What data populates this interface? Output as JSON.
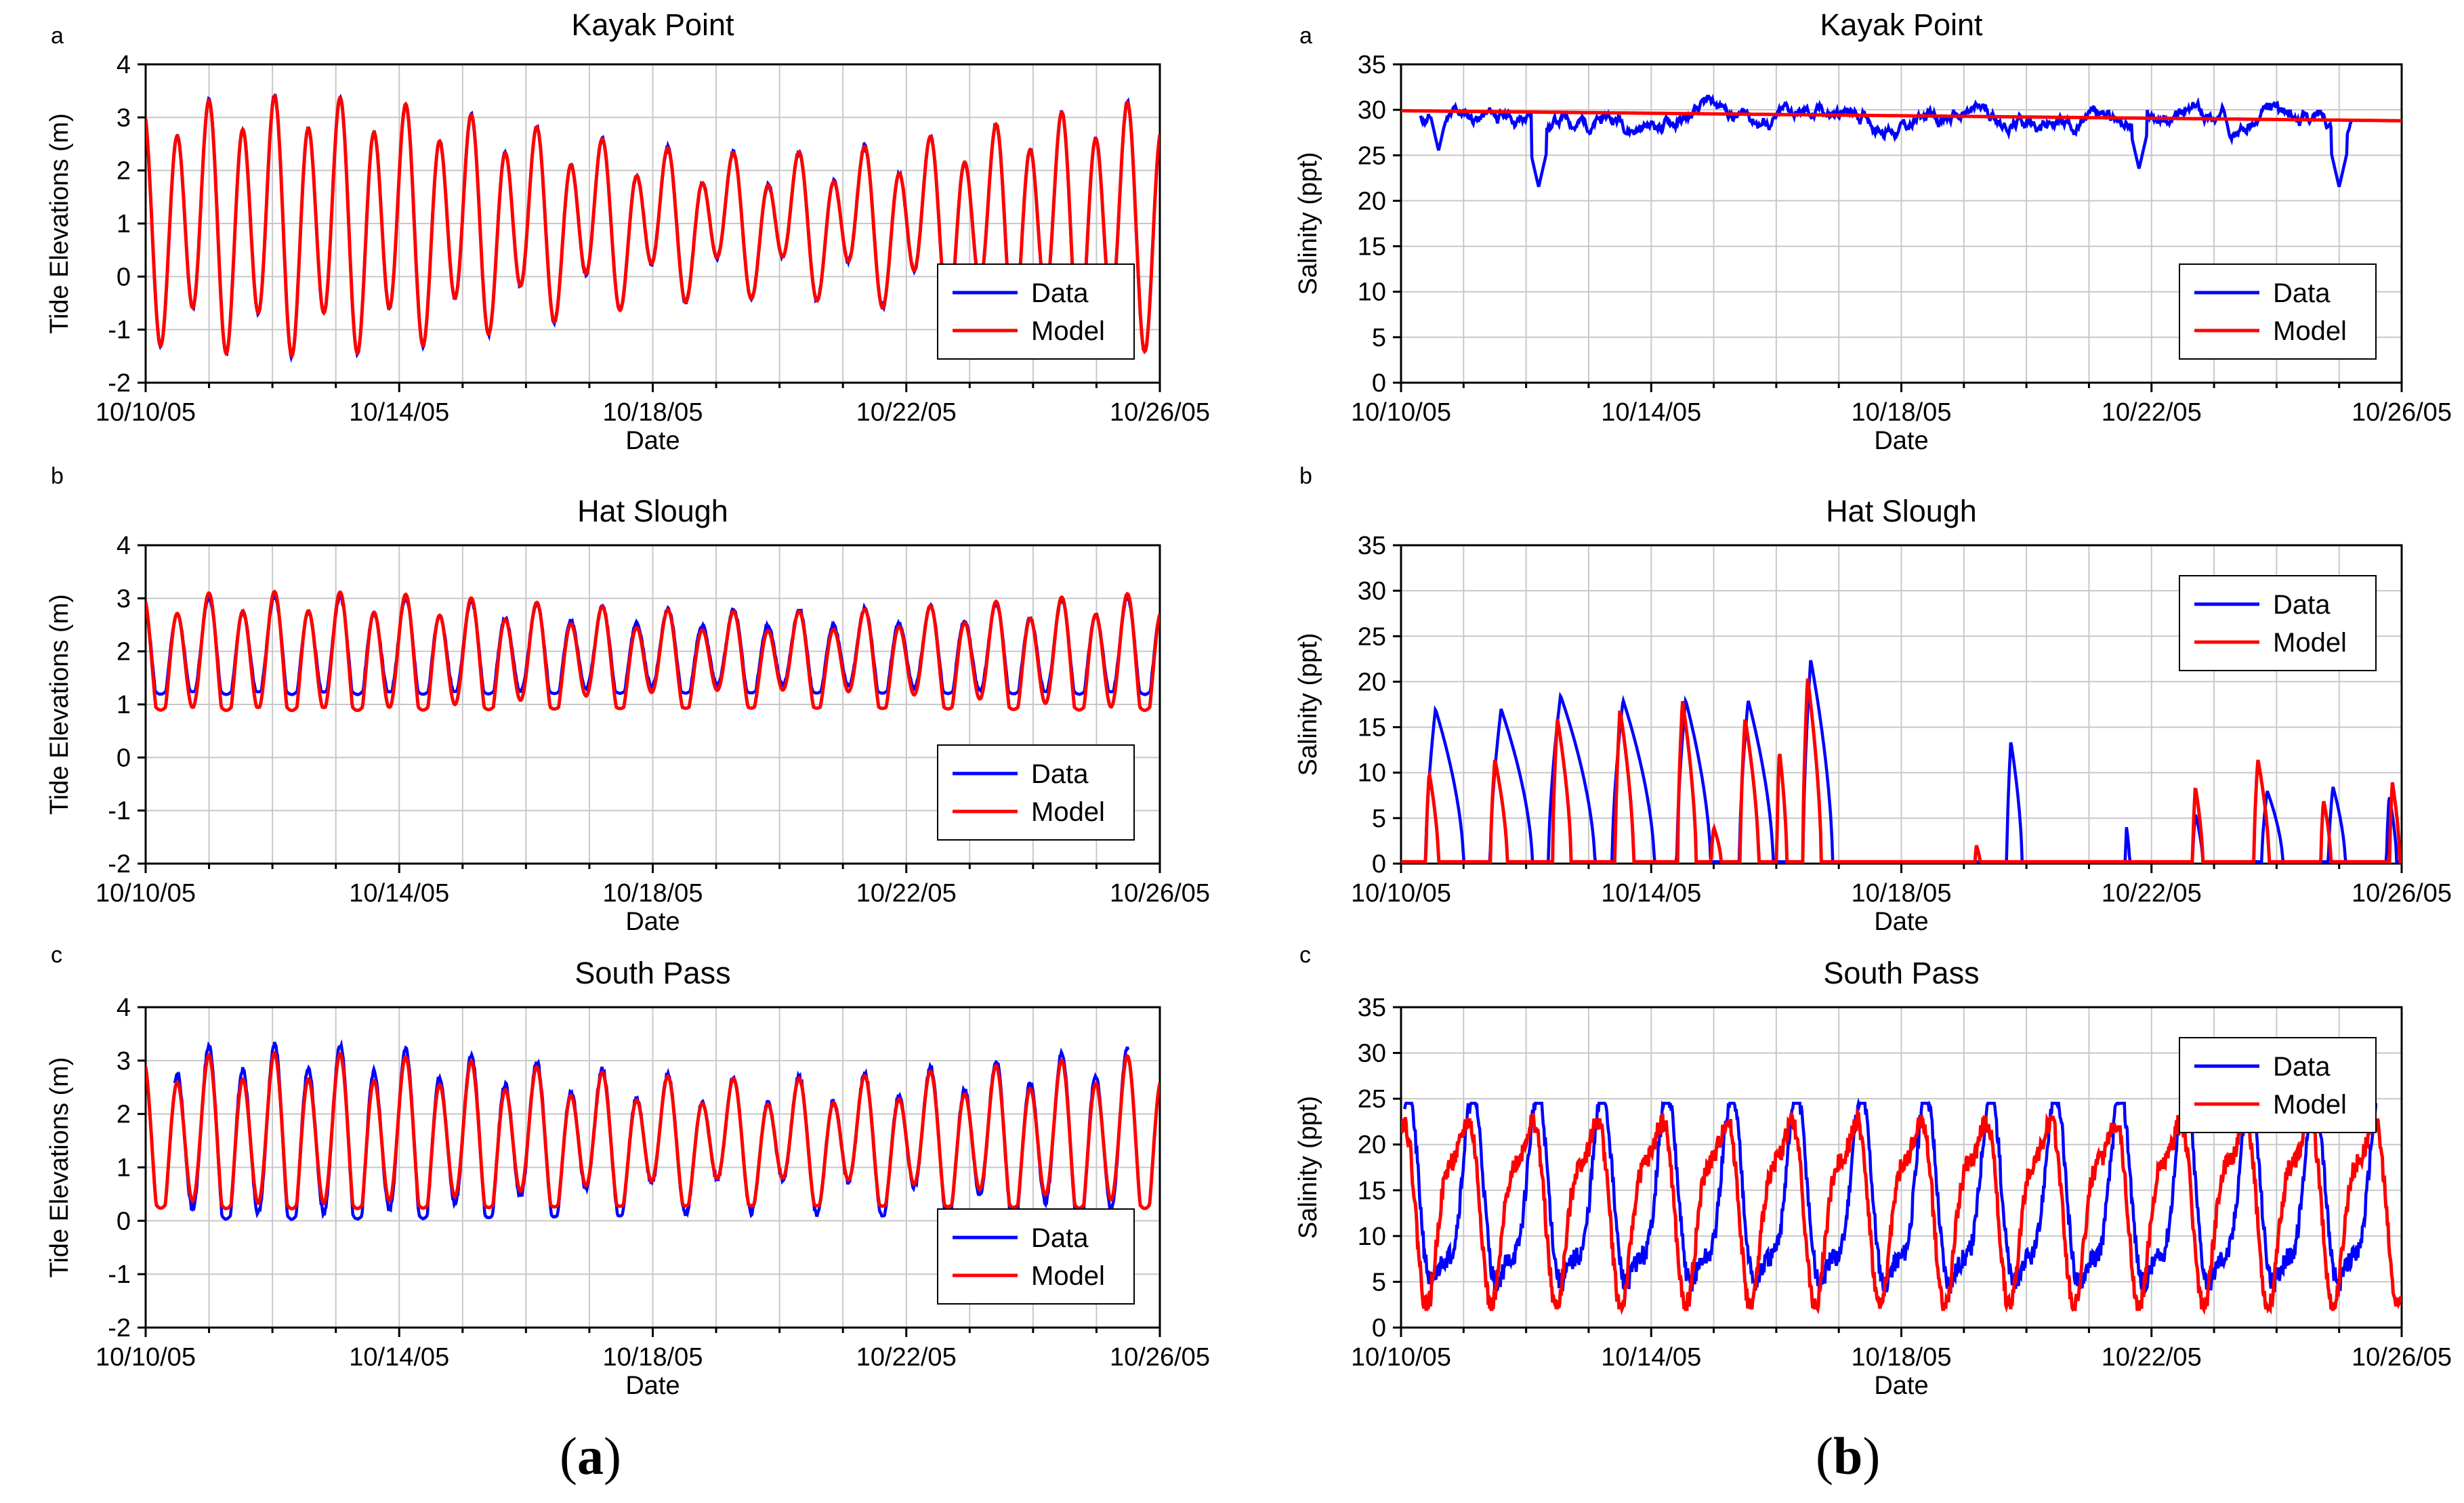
{
  "figure": {
    "captions": {
      "a": "a",
      "b": "b"
    }
  },
  "colors": {
    "data": "#0000ff",
    "model": "#ff0000",
    "grid": "#c8c8c8",
    "axis": "#000000"
  },
  "chart_data": [
    {
      "id": "a1",
      "panel_letter": "a",
      "title": "Kayak Point",
      "type": "line",
      "xlabel": "Date",
      "ylabel": "Tide Elevations (m)",
      "xlim": [
        0,
        16
      ],
      "ylim": [
        -2,
        4
      ],
      "yticks": [
        -2,
        -1,
        0,
        1,
        2,
        3,
        4
      ],
      "xtick_labels": [
        "10/10/05",
        "10/14/05",
        "10/18/05",
        "10/22/05",
        "10/26/05"
      ],
      "xtick_days": [
        0,
        4,
        8,
        12,
        16
      ],
      "legend": [
        "Data",
        "Model"
      ],
      "legend_position": "bottom-right",
      "series": [
        {
          "name": "Data",
          "gen": {
            "kind": "tide",
            "mean": 1.0,
            "amp": 1.55,
            "amp2": 0.5,
            "spring": 0.35,
            "phase": 0,
            "noise": 0.04,
            "seed": 3
          }
        },
        {
          "name": "Model",
          "gen": {
            "kind": "tide",
            "mean": 1.0,
            "amp": 1.55,
            "amp2": 0.5,
            "spring": 0.35,
            "phase": 0,
            "noise": 0,
            "seed": 4
          }
        }
      ]
    },
    {
      "id": "a2",
      "panel_letter": "b",
      "title": "Hat Slough",
      "type": "line",
      "xlabel": "Date",
      "ylabel": "Tide Elevations (m)",
      "xlim": [
        0,
        16
      ],
      "ylim": [
        -2,
        4
      ],
      "yticks": [
        -2,
        -1,
        0,
        1,
        2,
        3,
        4
      ],
      "xtick_labels": [
        "10/10/05",
        "10/14/05",
        "10/18/05",
        "10/22/05",
        "10/26/05"
      ],
      "xtick_days": [
        0,
        4,
        8,
        12,
        16
      ],
      "legend": [
        "Data",
        "Model"
      ],
      "legend_position": "bottom-right",
      "series": [
        {
          "name": "Data",
          "gen": {
            "kind": "tide_clipped",
            "mean": 1.9,
            "amp": 0.85,
            "amp2": 0.25,
            "spring": 0.15,
            "floor": 1.25,
            "phase": 0,
            "noise": 0.03,
            "seed": 5
          }
        },
        {
          "name": "Model",
          "gen": {
            "kind": "tide_clipped",
            "mean": 1.8,
            "amp": 0.95,
            "amp2": 0.3,
            "spring": 0.2,
            "floor": 0.95,
            "phase": 0,
            "noise": 0,
            "seed": 6
          }
        }
      ]
    },
    {
      "id": "a3",
      "panel_letter": "c",
      "title": "South Pass",
      "type": "line",
      "xlabel": "Date",
      "ylabel": "Tide Elevations (m)",
      "xlim": [
        0,
        16
      ],
      "ylim": [
        -2,
        4
      ],
      "yticks": [
        -2,
        -1,
        0,
        1,
        2,
        3,
        4
      ],
      "xtick_labels": [
        "10/10/05",
        "10/14/05",
        "10/18/05",
        "10/22/05",
        "10/26/05"
      ],
      "xtick_days": [
        0,
        4,
        8,
        12,
        16
      ],
      "legend": [
        "Data",
        "Model"
      ],
      "legend_position": "bottom-right",
      "series": [
        {
          "name": "Data",
          "gen": {
            "kind": "tide_clipped",
            "mean": 1.45,
            "amp": 1.3,
            "amp2": 0.4,
            "spring": 0.25,
            "floor": 0.1,
            "phase": 0,
            "noise": 0.05,
            "seed": 7,
            "start": 0.45,
            "end": 15.5
          }
        },
        {
          "name": "Model",
          "gen": {
            "kind": "tide_clipped",
            "mean": 1.45,
            "amp": 1.2,
            "amp2": 0.4,
            "spring": 0.2,
            "floor": 0.3,
            "phase": 0,
            "noise": 0,
            "seed": 8
          }
        }
      ]
    },
    {
      "id": "b1",
      "panel_letter": "a",
      "title": "Kayak Point",
      "type": "line",
      "xlabel": "Date",
      "ylabel": "Salinity (ppt)",
      "xlim": [
        0,
        16
      ],
      "ylim": [
        0,
        35
      ],
      "yticks": [
        0,
        5,
        10,
        15,
        20,
        25,
        30,
        35
      ],
      "xtick_labels": [
        "10/10/05",
        "10/14/05",
        "10/18/05",
        "10/22/05",
        "10/26/05"
      ],
      "xtick_days": [
        0,
        4,
        8,
        12,
        16
      ],
      "legend": [
        "Data",
        "Model"
      ],
      "legend_position": "bottom-right",
      "series": [
        {
          "name": "Data",
          "gen": {
            "kind": "walk",
            "base": 29,
            "range": 3.5,
            "seed": 11,
            "start": 0.3,
            "end": 15.2,
            "dips": [
              [
                0.6,
                25.5
              ],
              [
                2.2,
                21.5
              ],
              [
                11.8,
                23.5
              ],
              [
                15.0,
                21.5
              ]
            ]
          }
        },
        {
          "name": "Model",
          "gen": {
            "kind": "linear",
            "from": 29.9,
            "to": 28.8
          }
        }
      ]
    },
    {
      "id": "b2",
      "panel_letter": "b",
      "title": "Hat Slough",
      "type": "line",
      "xlabel": "Date",
      "ylabel": "Salinity (ppt)",
      "xlim": [
        0,
        16
      ],
      "ylim": [
        0,
        35
      ],
      "yticks": [
        0,
        5,
        10,
        15,
        20,
        25,
        30,
        35
      ],
      "xtick_labels": [
        "10/10/05",
        "10/14/05",
        "10/18/05",
        "10/22/05",
        "10/26/05"
      ],
      "xtick_days": [
        0,
        4,
        8,
        12,
        16
      ],
      "legend": [
        "Data",
        "Model"
      ],
      "legend_position": "top-right",
      "series": [
        {
          "name": "Data",
          "gen": {
            "kind": "pulses",
            "pulses": [
              [
                0.55,
                17,
                0.45
              ],
              [
                1.6,
                17,
                0.5
              ],
              [
                2.55,
                18.5,
                0.55
              ],
              [
                3.55,
                18,
                0.5
              ],
              [
                4.55,
                18,
                0.4
              ],
              [
                5.55,
                18,
                0.4
              ],
              [
                6.55,
                22.5,
                0.35
              ],
              [
                9.75,
                13.5,
                0.18
              ],
              [
                11.6,
                4,
                0.05
              ],
              [
                12.7,
                5.5,
                0.12
              ],
              [
                13.85,
                8,
                0.25
              ],
              [
                14.9,
                8.5,
                0.2
              ],
              [
                15.8,
                7.5,
                0.12
              ]
            ]
          }
        },
        {
          "name": "Model",
          "gen": {
            "kind": "pulses",
            "pulses": [
              [
                0.45,
                10,
                0.15
              ],
              [
                1.5,
                11.5,
                0.2
              ],
              [
                2.5,
                16,
                0.22
              ],
              [
                3.5,
                17,
                0.22
              ],
              [
                4.5,
                18,
                0.22
              ],
              [
                5.5,
                16,
                0.22
              ],
              [
                6.5,
                20.5,
                0.22
              ],
              [
                6.05,
                12.5,
                0.12
              ],
              [
                5.0,
                4,
                0.12
              ],
              [
                12.7,
                8.5,
                0.12
              ],
              [
                13.7,
                11.5,
                0.18
              ],
              [
                14.75,
                7,
                0.12
              ],
              [
                15.85,
                9,
                0.12
              ],
              [
                9.2,
                2,
                0.06
              ]
            ]
          }
        }
      ]
    },
    {
      "id": "b3",
      "panel_letter": "c",
      "title": "South Pass",
      "type": "line",
      "xlabel": "Date",
      "ylabel": "Salinity (ppt)",
      "xlim": [
        0,
        16
      ],
      "ylim": [
        0,
        35
      ],
      "yticks": [
        0,
        5,
        10,
        15,
        20,
        25,
        30,
        35
      ],
      "xtick_labels": [
        "10/10/05",
        "10/14/05",
        "10/18/05",
        "10/22/05",
        "10/26/05"
      ],
      "xtick_days": [
        0,
        4,
        8,
        12,
        16
      ],
      "legend": [
        "Data",
        "Model"
      ],
      "legend_position": "top-right",
      "series": [
        {
          "name": "Data",
          "gen": {
            "kind": "osc",
            "mean": 13,
            "amp": 9.5,
            "low": 2.5,
            "high": 24.5,
            "seed": 21,
            "start": 0.05,
            "end": 15.6
          }
        },
        {
          "name": "Model",
          "gen": {
            "kind": "osc",
            "mean": 14,
            "amp": 9,
            "low": 2,
            "high": 25,
            "seed": 22,
            "start": 0,
            "end": 16
          }
        }
      ]
    }
  ]
}
